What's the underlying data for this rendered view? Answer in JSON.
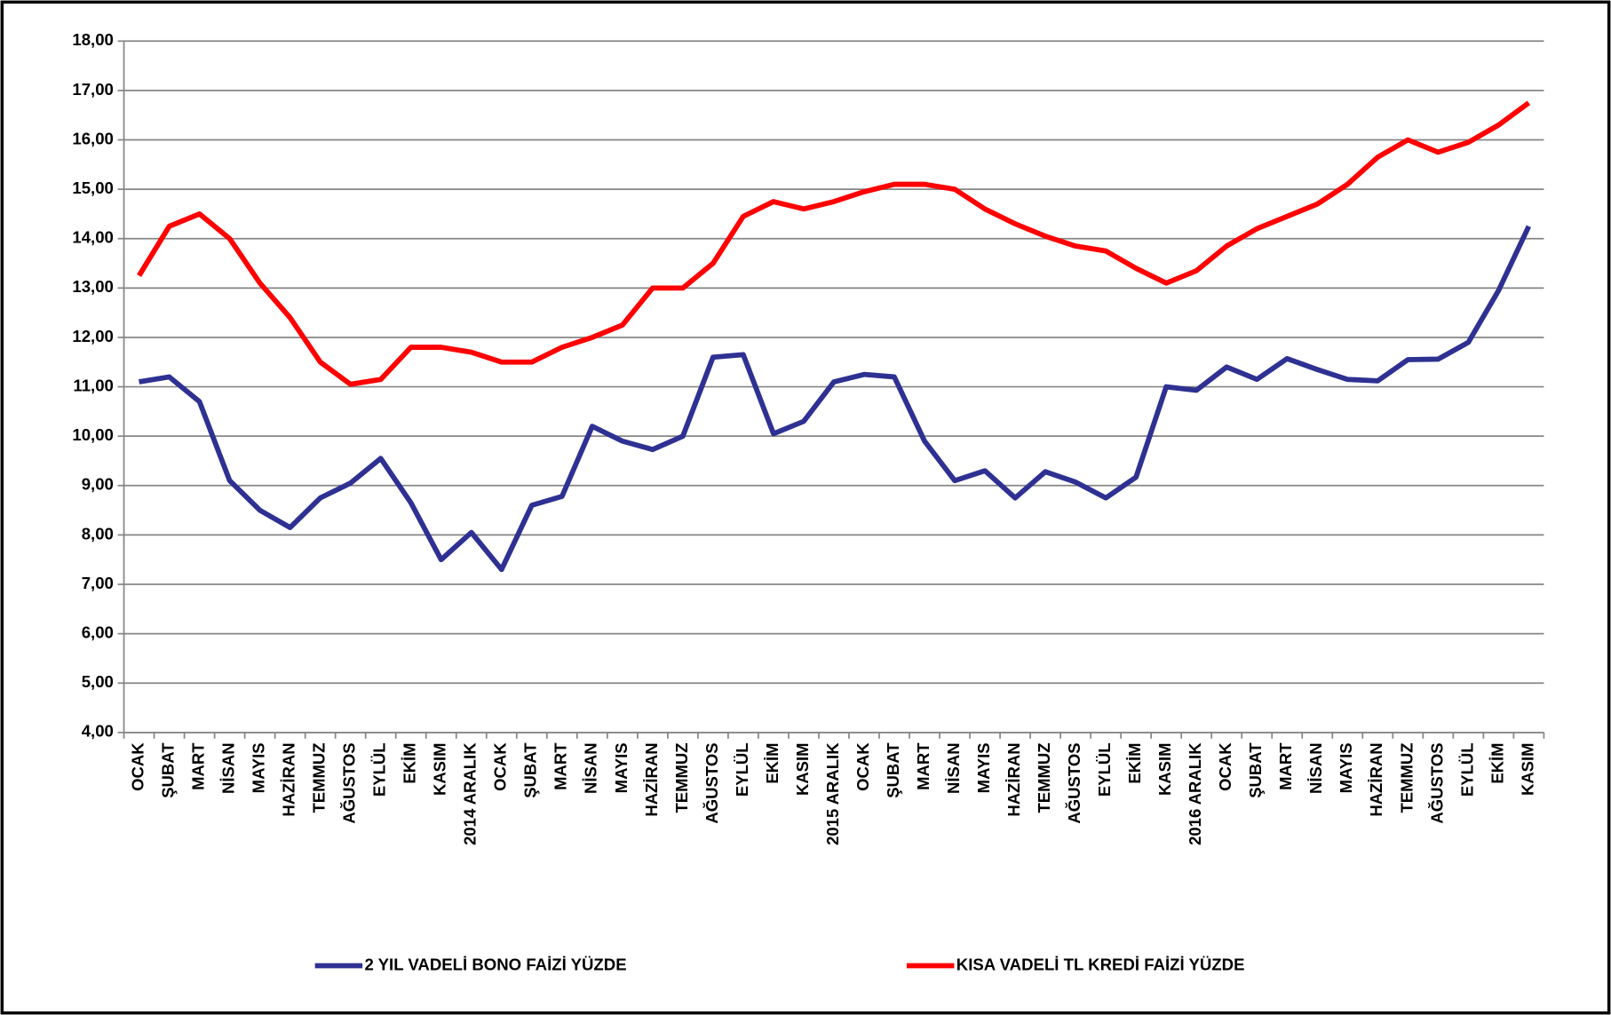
{
  "chart_data": {
    "type": "line",
    "categories": [
      "OCAK",
      "ŞUBAT",
      "MART",
      "NİSAN",
      "MAYIS",
      "HAZİRAN",
      "TEMMUZ",
      "AĞUSTOS",
      "EYLÜL",
      "EKİM",
      "KASIM",
      "2014 ARALIK",
      "OCAK",
      "ŞUBAT",
      "MART",
      "NİSAN",
      "MAYIS",
      "HAZİRAN",
      "TEMMUZ",
      "AĞUSTOS",
      "EYLÜL",
      "EKİM",
      "KASIM",
      "2015 ARALIK",
      "OCAK",
      "ŞUBAT",
      "MART",
      "NİSAN",
      "MAYIS",
      "HAZİRAN",
      "TEMMUZ",
      "AĞUSTOS",
      "EYLÜL",
      "EKİM",
      "KASIM",
      "2016 ARALIK",
      "OCAK",
      "ŞUBAT",
      "MART",
      "NİSAN",
      "MAYIS",
      "HAZİRAN",
      "TEMMUZ",
      "AĞUSTOS",
      "EYLÜL",
      "EKİM",
      "KASIM"
    ],
    "series": [
      {
        "name": "2 YIL VADELİ BONO FAİZİ YÜZDE",
        "color": "#2e3192",
        "values": [
          11.1,
          11.2,
          10.7,
          9.1,
          8.5,
          8.15,
          8.75,
          9.05,
          9.55,
          8.65,
          7.5,
          8.05,
          7.3,
          8.6,
          8.78,
          10.2,
          9.9,
          9.73,
          10.0,
          11.6,
          11.65,
          10.05,
          10.3,
          11.1,
          11.25,
          11.2,
          9.9,
          9.1,
          9.3,
          8.75,
          9.28,
          9.07,
          8.75,
          9.17,
          11.0,
          10.93,
          11.4,
          11.15,
          11.57,
          11.35,
          11.15,
          11.12,
          11.55,
          11.56,
          11.9,
          12.95,
          14.25
        ]
      },
      {
        "name": "KISA VADELİ TL KREDİ FAİZİ YÜZDE",
        "color": "#ff0000",
        "values": [
          13.25,
          14.25,
          14.5,
          14.0,
          13.1,
          12.4,
          11.5,
          11.05,
          11.15,
          11.8,
          11.8,
          11.7,
          11.5,
          11.5,
          11.8,
          12.0,
          12.25,
          13.0,
          13.0,
          13.5,
          14.45,
          14.75,
          14.6,
          14.75,
          14.95,
          15.1,
          15.1,
          15.0,
          14.6,
          14.3,
          14.05,
          13.85,
          13.75,
          13.4,
          13.1,
          13.35,
          13.85,
          14.2,
          14.45,
          14.7,
          15.1,
          15.65,
          16.0,
          15.75,
          15.95,
          16.3,
          16.75
        ]
      }
    ],
    "ylim": [
      4,
      18
    ],
    "yticks": [
      {
        "value": 4,
        "label": "4,00"
      },
      {
        "value": 5,
        "label": "5,00"
      },
      {
        "value": 6,
        "label": "6,00"
      },
      {
        "value": 7,
        "label": "7,00"
      },
      {
        "value": 8,
        "label": "8,00"
      },
      {
        "value": 9,
        "label": "9,00"
      },
      {
        "value": 10,
        "label": "10,00"
      },
      {
        "value": 11,
        "label": "11,00"
      },
      {
        "value": 12,
        "label": "12,00"
      },
      {
        "value": 13,
        "label": "13,00"
      },
      {
        "value": 14,
        "label": "14,00"
      },
      {
        "value": 15,
        "label": "15,00"
      },
      {
        "value": 16,
        "label": "16,00"
      },
      {
        "value": 17,
        "label": "17,00"
      },
      {
        "value": 18,
        "label": "18,00"
      }
    ],
    "grid": true,
    "legend": "bottom"
  }
}
